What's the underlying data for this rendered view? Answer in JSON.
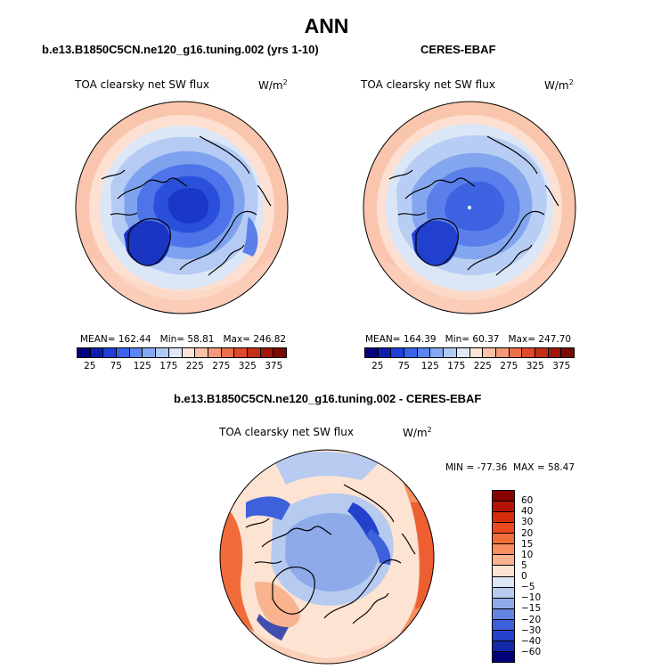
{
  "figure": {
    "season": "ANN"
  },
  "panels": {
    "model": {
      "title": "b.e13.B1850C5CN.ne120_g16.tuning.002 (yrs 1-10)",
      "variable": "TOA clearsky net SW flux",
      "units_base": "W/m",
      "units_exp": "2",
      "mean_label": "MEAN=",
      "mean": "162.44",
      "min_label": "Min=",
      "min": "58.81",
      "max_label": "Max=",
      "max": "246.82"
    },
    "obs": {
      "title": "CERES-EBAF",
      "variable": "TOA clearsky net SW flux",
      "units_base": "W/m",
      "units_exp": "2",
      "mean_label": "MEAN=",
      "mean": "164.39",
      "min_label": "Min=",
      "min": "60.37",
      "max_label": "Max=",
      "max": "247.70"
    },
    "diff": {
      "title": "b.e13.B1850C5CN.ne120_g16.tuning.002 - CERES-EBAF",
      "variable": "TOA clearsky net SW flux",
      "units_base": "W/m",
      "units_exp": "2",
      "min_label": "MIN =",
      "min": "-77.36",
      "max_label": "MAX =",
      "max": "58.47"
    }
  },
  "colorbar_abs": {
    "ticks": [
      "25",
      "75",
      "125",
      "175",
      "225",
      "275",
      "325",
      "375"
    ],
    "colors": [
      "#00007f",
      "#0a1fb0",
      "#1f3fd8",
      "#3a62ec",
      "#5b85f2",
      "#86a9f4",
      "#b3c9f5",
      "#dfe8f8",
      "#fde3d5",
      "#f9c2a7",
      "#f49a7a",
      "#ec6f4c",
      "#de4a2a",
      "#c42d16",
      "#a0160a",
      "#7a0a04"
    ]
  },
  "colorbar_diff": {
    "ticks": [
      "60",
      "40",
      "30",
      "20",
      "15",
      "10",
      "5",
      "0",
      "−5",
      "−10",
      "−15",
      "−20",
      "−30",
      "−40",
      "−60"
    ],
    "colors": [
      "#8b0000",
      "#b21405",
      "#d62e0c",
      "#ea4a1e",
      "#f26c3a",
      "#f68e5e",
      "#f9b38f",
      "#fde3d2",
      "#dbe6f7",
      "#b7cbf1",
      "#8eaae9",
      "#6385e2",
      "#3d60db",
      "#2342cc",
      "#1128a8",
      "#00007a"
    ]
  }
}
